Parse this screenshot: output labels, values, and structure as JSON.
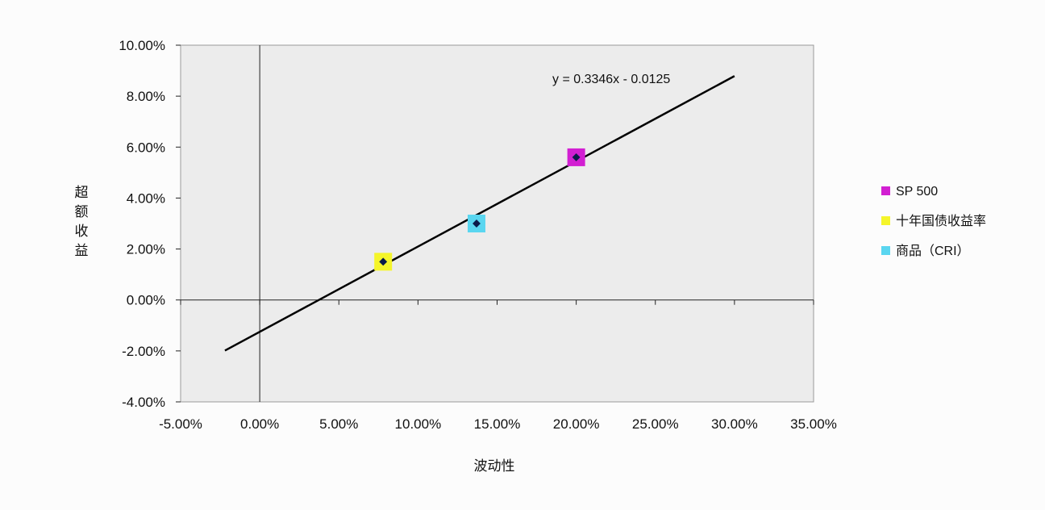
{
  "chart_data": {
    "type": "scatter",
    "xlabel": "波动性",
    "ylabel": "超额收益",
    "xlim": [
      -0.05,
      0.35
    ],
    "ylim": [
      -0.04,
      0.1
    ],
    "x_ticks": [
      -0.05,
      0.0,
      0.05,
      0.1,
      0.15,
      0.2,
      0.25,
      0.3,
      0.35
    ],
    "y_ticks": [
      -0.04,
      -0.02,
      0.0,
      0.02,
      0.04,
      0.06,
      0.08,
      0.1
    ],
    "x_tick_labels": [
      "-5.00%",
      "0.00%",
      "5.00%",
      "10.00%",
      "15.00%",
      "20.00%",
      "25.00%",
      "30.00%",
      "35.00%"
    ],
    "y_tick_labels": [
      "-4.00%",
      "-2.00%",
      "0.00%",
      "2.00%",
      "4.00%",
      "6.00%",
      "8.00%",
      "10.00%"
    ],
    "series": [
      {
        "name": "SP 500",
        "color": "#d21fd2",
        "x": [
          0.2
        ],
        "y": [
          0.056
        ]
      },
      {
        "name": "十年国债收益率",
        "color": "#f5f52a",
        "x": [
          0.078
        ],
        "y": [
          0.015
        ]
      },
      {
        "name": "商品（CRI）",
        "color": "#5ad6f0",
        "x": [
          0.137
        ],
        "y": [
          0.03
        ]
      }
    ],
    "trendline": {
      "equation": "y = 0.3346x - 0.0125",
      "slope": 0.3346,
      "intercept": -0.0125,
      "x_range": [
        -0.022,
        0.3
      ],
      "color": "#000000"
    },
    "grid": false,
    "legend_position": "right",
    "plot_background": "#ececec"
  }
}
